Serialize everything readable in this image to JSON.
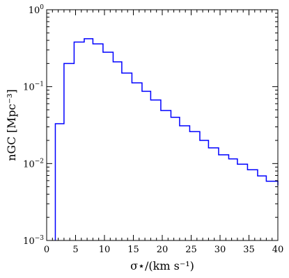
{
  "chart_data": {
    "type": "line",
    "drawstyle": "steps",
    "x_axis": {
      "label": "σ⋆/(km s⁻¹)",
      "range": [
        0,
        40
      ],
      "ticks": [
        0,
        5,
        10,
        15,
        20,
        25,
        30,
        35,
        40
      ],
      "tick_labels": [
        "0",
        "5",
        "10",
        "15",
        "20",
        "25",
        "30",
        "35",
        "40"
      ]
    },
    "y_axis": {
      "label": "nGC [Mpc⁻³]",
      "scale": "log",
      "range": [
        0.001,
        1
      ],
      "ticks": [
        0.001,
        0.01,
        0.1,
        1
      ],
      "tick_labels": [
        {
          "base": "10",
          "exp": "−3"
        },
        {
          "base": "10",
          "exp": "−2"
        },
        {
          "base": "10",
          "exp": "−1"
        },
        {
          "base": "10",
          "exp": "0"
        }
      ]
    },
    "grid": false,
    "series": [
      {
        "color": "#0000ff",
        "bin_edges": [
          1.5,
          3.0,
          4.75,
          6.5,
          8.0,
          9.75,
          11.5,
          13.0,
          14.75,
          16.5,
          18.0,
          19.75,
          21.5,
          23.0,
          24.75,
          26.5,
          28.0,
          29.75,
          31.5,
          33.0,
          34.75,
          36.5,
          38.0,
          40.0
        ],
        "values": [
          0.033,
          0.2,
          0.38,
          0.42,
          0.36,
          0.28,
          0.21,
          0.15,
          0.112,
          0.087,
          0.067,
          0.049,
          0.04,
          0.031,
          0.026,
          0.02,
          0.016,
          0.013,
          0.0115,
          0.0098,
          0.0083,
          0.0069,
          0.0059,
          0.0052
        ]
      }
    ]
  }
}
